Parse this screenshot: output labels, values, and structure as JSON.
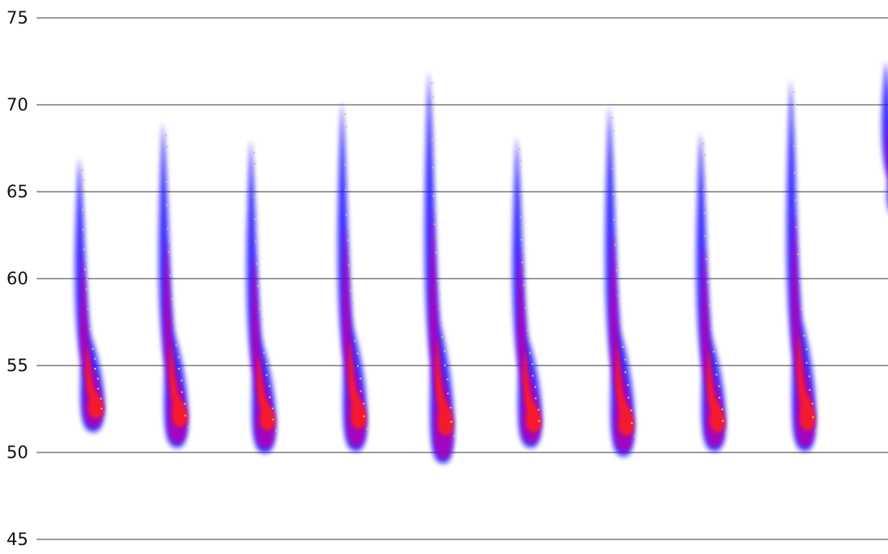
{
  "chart_data": {
    "type": "spectrogram",
    "title": "",
    "xlabel": "",
    "ylabel": "",
    "ylim": [
      45,
      75
    ],
    "y_ticks": [
      45,
      50,
      55,
      60,
      65,
      70,
      75
    ],
    "grid": "horizontal",
    "colors": {
      "background": "#ffffff",
      "gridline": "#3a3a3a",
      "low_intensity": "#1a10ff",
      "mid_intensity": "#b400b4",
      "high_intensity": "#ff1a1a",
      "peak_marker": "#c8c878"
    },
    "calls": [
      {
        "top": 67.0,
        "bottom": 51.2,
        "peak_bottom": 52.0
      },
      {
        "top": 69.0,
        "bottom": 50.3,
        "peak_bottom": 51.5
      },
      {
        "top": 68.0,
        "bottom": 50.0,
        "peak_bottom": 51.3
      },
      {
        "top": 70.2,
        "bottom": 50.1,
        "peak_bottom": 51.4
      },
      {
        "top": 72.0,
        "bottom": 49.4,
        "peak_bottom": 51.0
      },
      {
        "top": 68.2,
        "bottom": 50.3,
        "peak_bottom": 51.2
      },
      {
        "top": 70.0,
        "bottom": 49.8,
        "peak_bottom": 51.0
      },
      {
        "top": 68.5,
        "bottom": 50.1,
        "peak_bottom": 51.2
      },
      {
        "top": 71.5,
        "bottom": 50.1,
        "peak_bottom": 51.3
      },
      {
        "top": 72.5,
        "bottom": 63.5,
        "peak_bottom": 65.0
      }
    ]
  }
}
